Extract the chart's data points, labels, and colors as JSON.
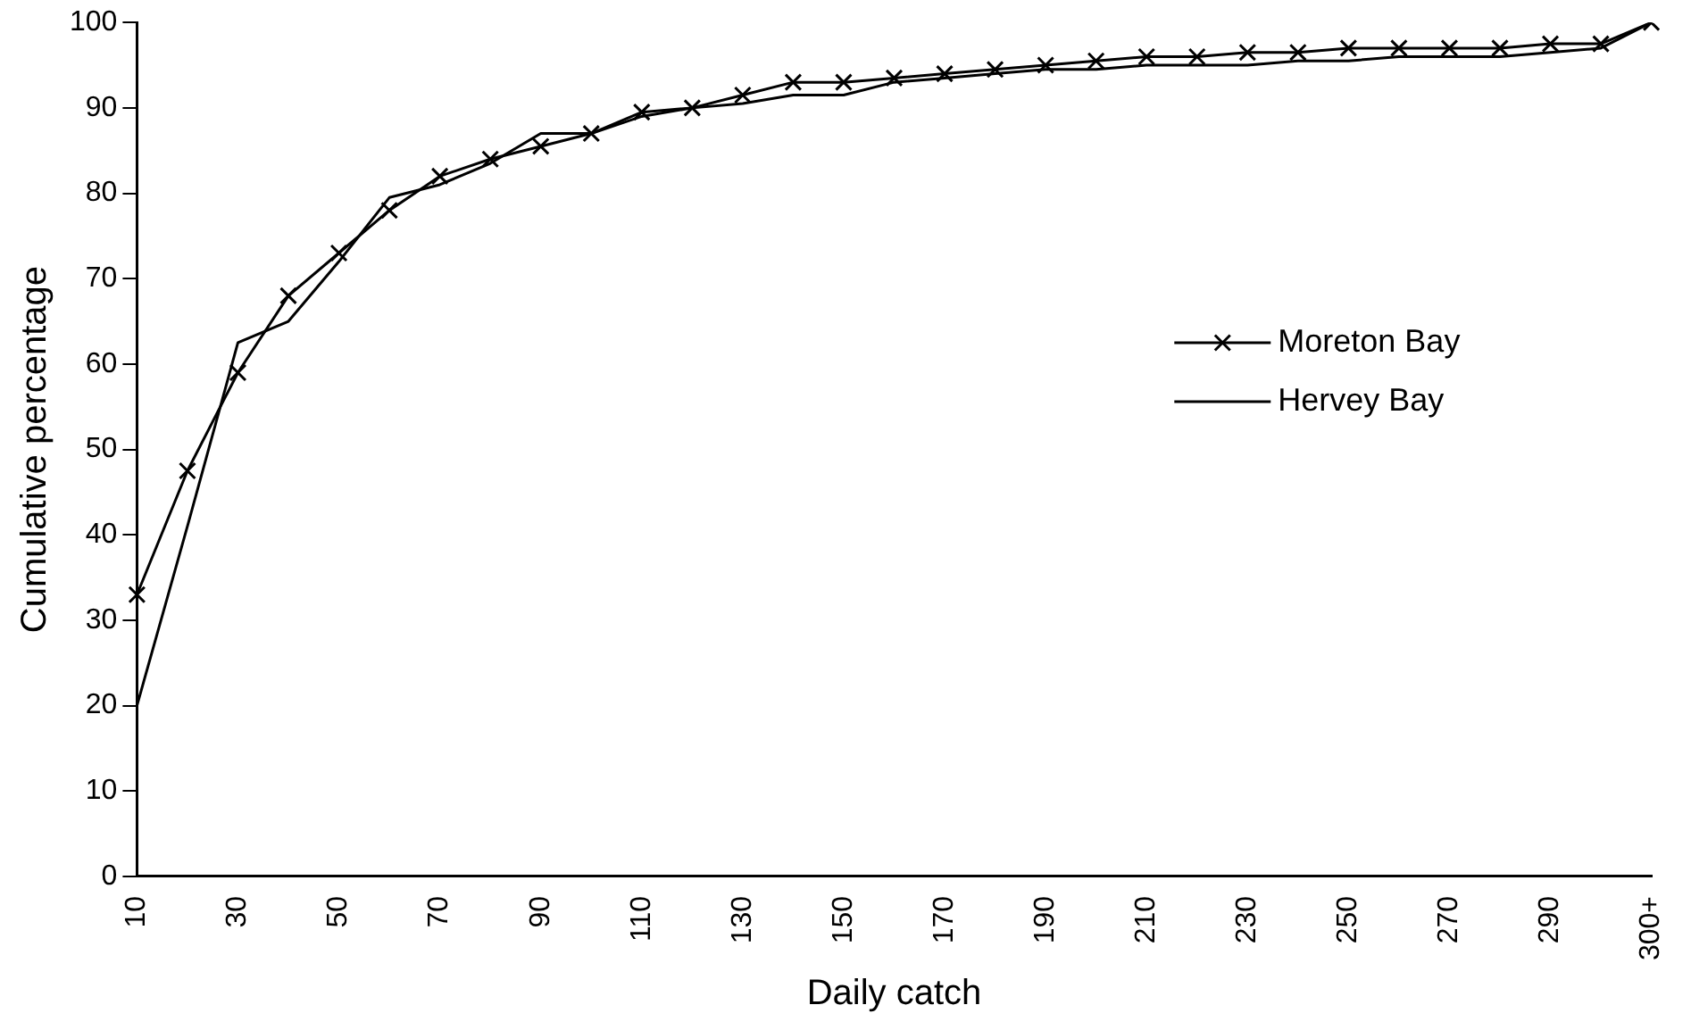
{
  "chart_data": {
    "type": "line",
    "xlabel": "Daily catch",
    "ylabel": "Cumulative percentage",
    "categories": [
      "10",
      null,
      "30",
      null,
      "50",
      null,
      "70",
      null,
      "90",
      null,
      "110",
      null,
      "130",
      null,
      "150",
      null,
      "170",
      null,
      "190",
      null,
      "210",
      null,
      "230",
      null,
      "250",
      null,
      "270",
      null,
      "290",
      null,
      "300+"
    ],
    "series": [
      {
        "name": "Moreton Bay",
        "color": "#000000",
        "marker": "cross",
        "values": [
          33,
          47.5,
          59,
          68,
          73,
          78,
          82,
          84,
          85.5,
          87,
          89.5,
          90,
          91.5,
          93,
          93,
          93.5,
          94,
          94.5,
          95,
          95.5,
          96,
          96,
          96.5,
          96.5,
          97,
          97,
          97,
          97,
          97.5,
          97.5,
          100
        ]
      },
      {
        "name": "Hervey Bay",
        "color": "#000000",
        "marker": "none",
        "values": [
          20,
          41,
          62.5,
          65,
          72,
          79.5,
          81,
          83.5,
          87,
          87,
          89,
          90,
          90.5,
          91.5,
          91.5,
          93,
          93.5,
          94,
          94.5,
          94.5,
          95,
          95,
          95,
          95.5,
          95.5,
          96,
          96,
          96,
          96.5,
          97,
          100
        ]
      }
    ],
    "ylim": [
      0,
      100
    ],
    "yticks": [
      0,
      10,
      20,
      30,
      40,
      50,
      60,
      70,
      80,
      90,
      100
    ],
    "grid": false,
    "legend": "right"
  }
}
